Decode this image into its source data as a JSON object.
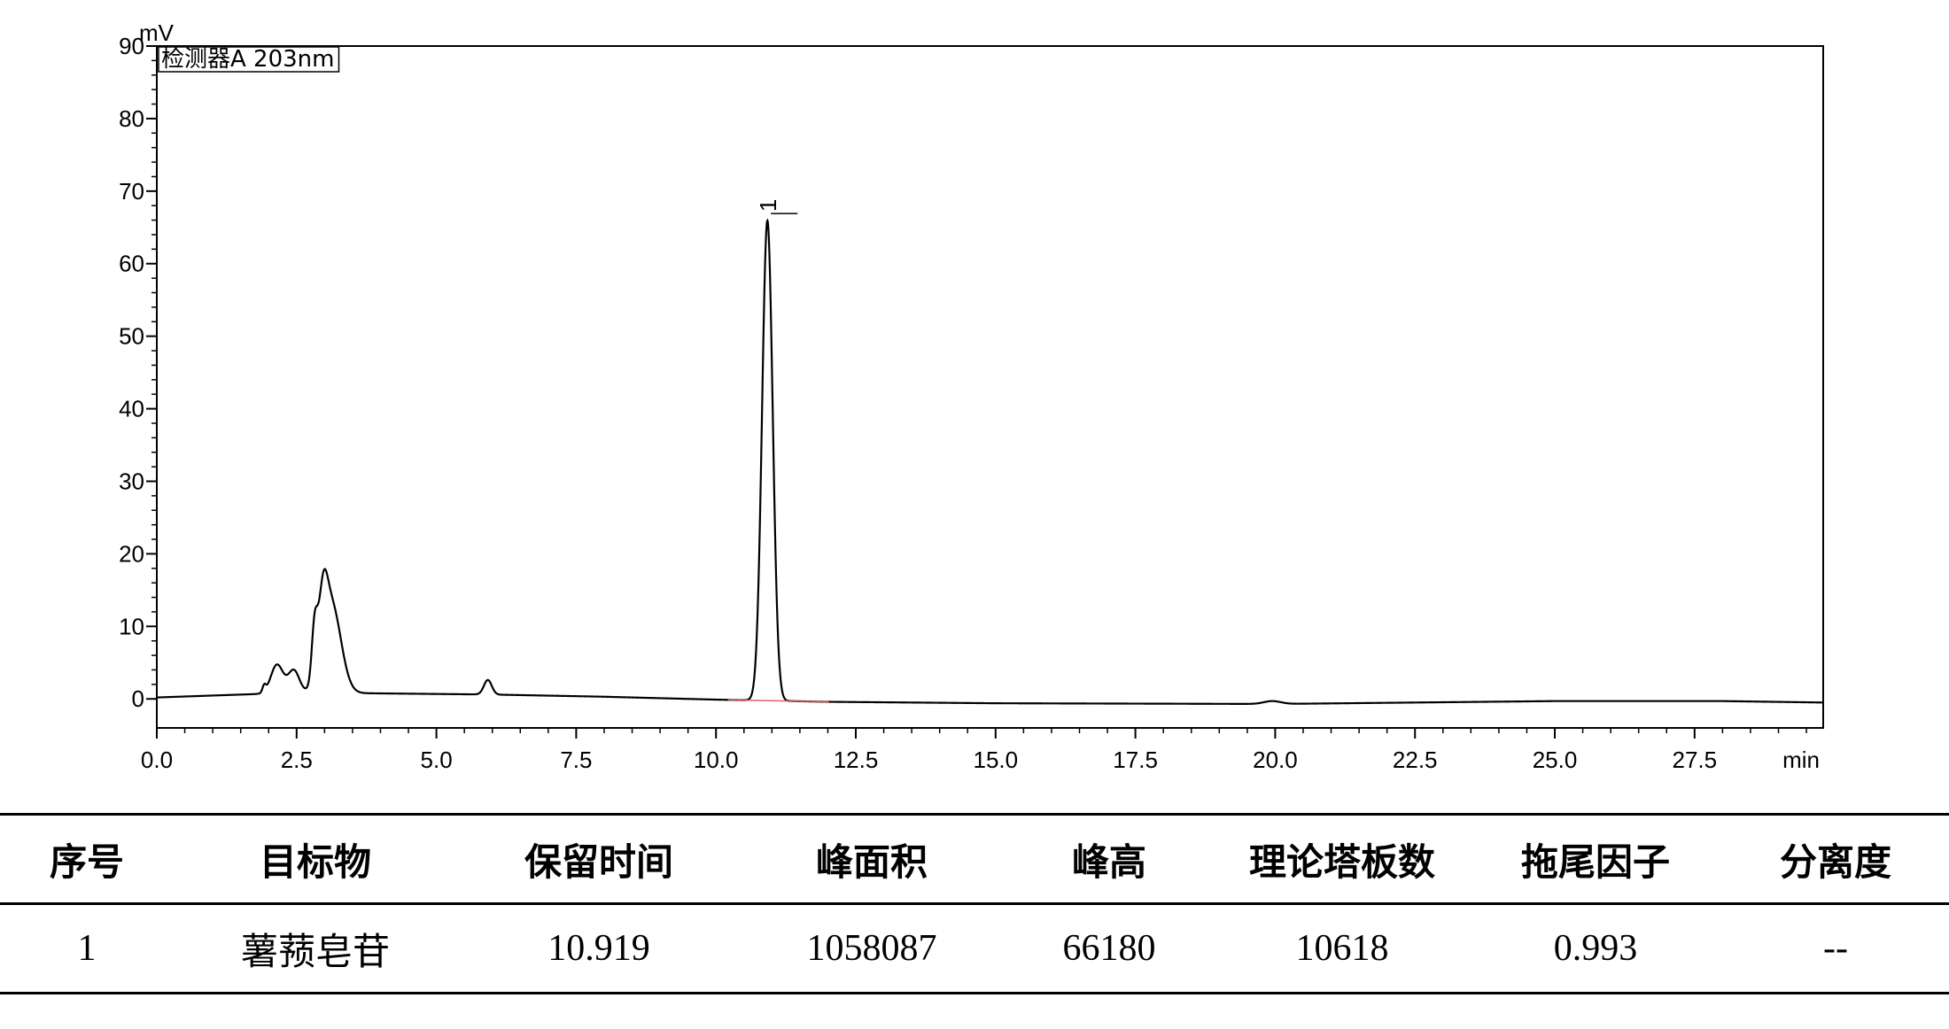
{
  "chart_data": {
    "type": "line",
    "title": "",
    "xlabel": "min",
    "ylabel": "mV",
    "legend": "检测器A 203nm",
    "legend_position": "top-left",
    "xlim": [
      0,
      29.8
    ],
    "ylim": [
      -4,
      90
    ],
    "x_ticks": [
      "0.0",
      "2.5",
      "5.0",
      "7.5",
      "10.0",
      "12.5",
      "15.0",
      "17.5",
      "20.0",
      "22.5",
      "25.0",
      "27.5"
    ],
    "y_ticks": [
      "0",
      "10",
      "20",
      "30",
      "40",
      "50",
      "60",
      "70",
      "80",
      "90"
    ],
    "grid": false,
    "baseline_points": [
      [
        0,
        0.2
      ],
      [
        1.9,
        0.7
      ],
      [
        3.5,
        0.8
      ],
      [
        6.0,
        0.6
      ],
      [
        8.0,
        0.3
      ],
      [
        10.0,
        -0.1
      ],
      [
        12.0,
        -0.4
      ],
      [
        15.0,
        -0.6
      ],
      [
        20.0,
        -0.7
      ],
      [
        25.0,
        -0.3
      ],
      [
        28.0,
        -0.3
      ],
      [
        29.8,
        -0.5
      ]
    ],
    "peaks": [
      {
        "center": 1.92,
        "height": 0.9,
        "width": 0.03
      },
      {
        "center": 2.15,
        "height": 4.0,
        "width": 0.11
      },
      {
        "center": 2.45,
        "height": 3.2,
        "width": 0.1
      },
      {
        "center": 2.82,
        "height": 7.0,
        "width": 0.05
      },
      {
        "center": 2.97,
        "height": 8.0,
        "width": 0.08
      },
      {
        "center": 3.12,
        "height": 12.4,
        "width": 0.17
      },
      {
        "center": 5.92,
        "height": 2.0,
        "width": 0.07
      },
      {
        "center": 10.919,
        "height": 66.18,
        "width": 0.095
      },
      {
        "center": 19.95,
        "height": 0.4,
        "width": 0.15
      }
    ],
    "peak_labels": [
      {
        "x": 10.919,
        "text": "1"
      }
    ],
    "colors": {
      "trace": "#000000",
      "integration_baseline": "#e06060"
    }
  },
  "table": {
    "headers": [
      "序号",
      "目标物",
      "保留时间",
      "峰面积",
      "峰高",
      "理论塔板数",
      "拖尾因子",
      "分离度"
    ],
    "rows": [
      [
        "1",
        "薯蓣皂苷",
        "10.919",
        "1058087",
        "66180",
        "10618",
        "0.993",
        "--"
      ]
    ]
  }
}
